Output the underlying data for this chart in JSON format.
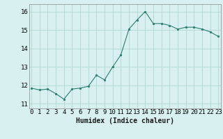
{
  "x": [
    0,
    1,
    2,
    3,
    4,
    5,
    6,
    7,
    8,
    9,
    10,
    11,
    12,
    13,
    14,
    15,
    16,
    17,
    18,
    19,
    20,
    21,
    22,
    23
  ],
  "y": [
    11.85,
    11.75,
    11.8,
    11.55,
    11.25,
    11.8,
    11.85,
    11.95,
    12.55,
    12.3,
    13.0,
    13.65,
    15.05,
    15.55,
    16.0,
    15.35,
    15.35,
    15.25,
    15.05,
    15.15,
    15.15,
    15.05,
    14.9,
    14.65
  ],
  "line_color": "#2d7d6e",
  "marker": "o",
  "marker_size": 1.8,
  "bg_color": "#d8f0f0",
  "grid_color": "#b0d8d0",
  "xlabel": "Humidex (Indice chaleur)",
  "xlabel_fontsize": 7,
  "tick_fontsize": 6.5,
  "ylim": [
    10.75,
    16.4
  ],
  "yticks": [
    11,
    12,
    13,
    14,
    15,
    16
  ],
  "xticks": [
    0,
    1,
    2,
    3,
    4,
    5,
    6,
    7,
    8,
    9,
    10,
    11,
    12,
    13,
    14,
    15,
    16,
    17,
    18,
    19,
    20,
    21,
    22,
    23
  ],
  "xlim": [
    -0.3,
    23.3
  ]
}
